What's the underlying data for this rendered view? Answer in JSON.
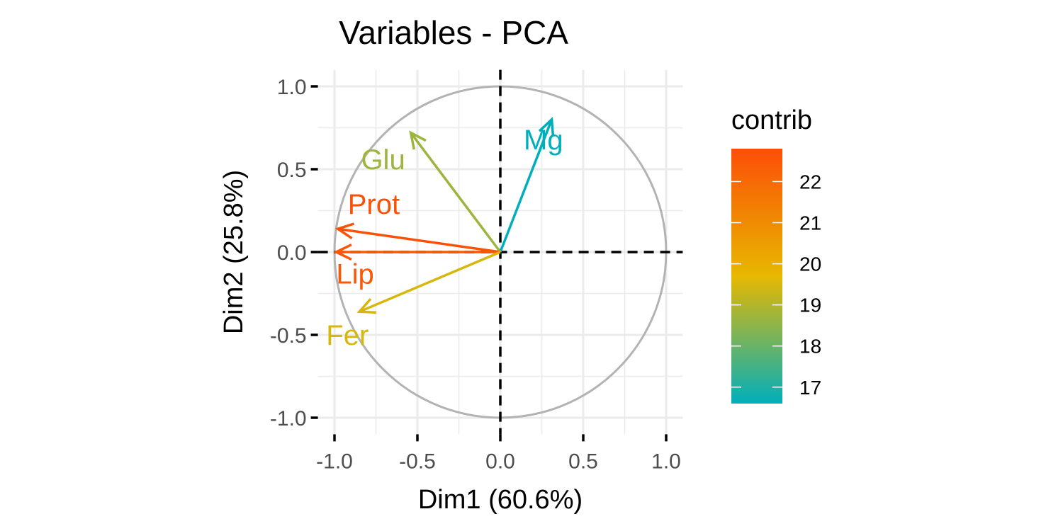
{
  "chart_data": {
    "type": "scatter",
    "title": "Variables - PCA",
    "xlabel": "Dim1 (60.6%)",
    "ylabel": "Dim2 (25.8%)",
    "xlim": [
      -1.1,
      1.1
    ],
    "ylim": [
      -1.1,
      1.1
    ],
    "xticks": [
      -1.0,
      -0.5,
      0.0,
      0.5,
      1.0
    ],
    "yticks": [
      -1.0,
      -0.5,
      0.0,
      0.5,
      1.0
    ],
    "x_tick_labels": [
      "-1.0",
      "-0.5",
      "0.0",
      "0.5",
      "1.0"
    ],
    "y_tick_labels": [
      "-1.0",
      "-0.5",
      "0.0",
      "0.5",
      "1.0"
    ],
    "grid": true,
    "unit_circle": true,
    "reference_lines": {
      "x": 0,
      "y": 0,
      "style": "dashed"
    },
    "variables": [
      {
        "name": "Mg",
        "x": 0.31,
        "y": 0.8,
        "contrib": 16.6
      },
      {
        "name": "Glu",
        "x": -0.54,
        "y": 0.72,
        "contrib": 18.7
      },
      {
        "name": "Prot",
        "x": -0.98,
        "y": 0.14,
        "contrib": 22.7
      },
      {
        "name": "Lip",
        "x": -0.99,
        "y": 0.0,
        "contrib": 22.5
      },
      {
        "name": "Fer",
        "x": -0.85,
        "y": -0.36,
        "contrib": 19.5
      }
    ],
    "legend": {
      "title": "contrib",
      "position": "right",
      "min": 16.6,
      "max": 22.8,
      "ticks": [
        17,
        18,
        19,
        20,
        21,
        22
      ],
      "tick_labels": [
        "17",
        "18",
        "19",
        "20",
        "21",
        "22"
      ],
      "colors": [
        "#00AFBB",
        "#E7B800",
        "#FC4E07"
      ]
    },
    "colors": {
      "circle": "#b3b3b3",
      "grid": "#ebebeb",
      "reference": "#000000"
    }
  }
}
